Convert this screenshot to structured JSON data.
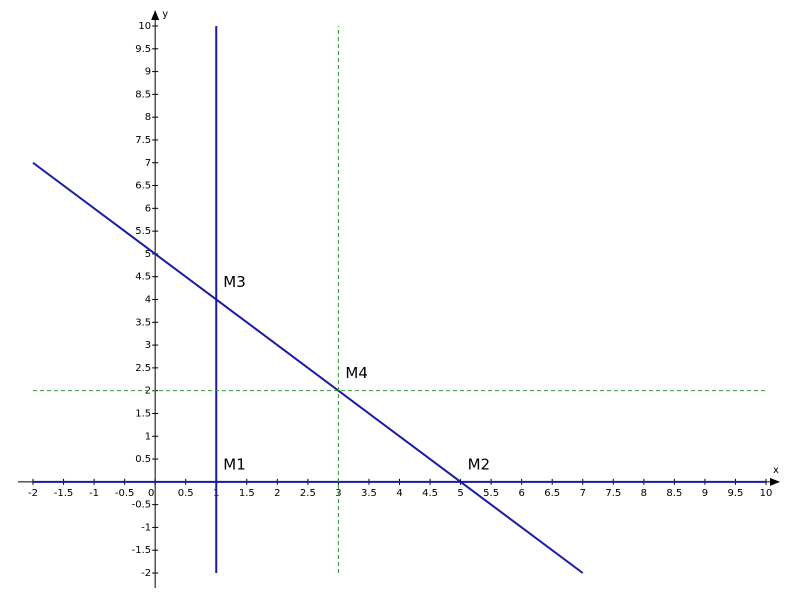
{
  "chart_data": {
    "type": "line",
    "x_label": "x",
    "y_label": "y",
    "xlim": [
      -2,
      10
    ],
    "ylim": [
      -2,
      10
    ],
    "xticks": [
      -2,
      -1.5,
      -1,
      -0.5,
      0,
      0.5,
      1,
      1.5,
      2,
      2.5,
      3,
      3.5,
      4,
      4.5,
      5,
      5.5,
      6,
      6.5,
      7,
      7.5,
      8,
      8.5,
      9,
      9.5,
      10
    ],
    "yticks": [
      -2,
      -1.5,
      -1,
      -0.5,
      0.5,
      1,
      1.5,
      2,
      2.5,
      3,
      3.5,
      4,
      4.5,
      5,
      5.5,
      6,
      6.5,
      7,
      7.5,
      8,
      8.5,
      9,
      9.5,
      10
    ],
    "series": [
      {
        "color": "#1a1aa6",
        "dashed": false,
        "x": [
          -2,
          7
        ],
        "values": [
          7,
          -2
        ]
      },
      {
        "color": "#1a1aa6",
        "dashed": false,
        "x": [
          1,
          1
        ],
        "values": [
          -2,
          10
        ]
      },
      {
        "color": "#1a1aa6",
        "dashed": false,
        "x": [
          -2,
          10
        ],
        "values": [
          0,
          0
        ]
      },
      {
        "color": "#339933",
        "dashed": true,
        "x": [
          3,
          3
        ],
        "values": [
          -2,
          10
        ]
      },
      {
        "color": "#339933",
        "dashed": true,
        "x": [
          -2,
          10
        ],
        "values": [
          2,
          2
        ]
      }
    ],
    "annotations": [
      {
        "text": "M1",
        "x": 1,
        "y": 0
      },
      {
        "text": "M2",
        "x": 5,
        "y": 0
      },
      {
        "text": "M3",
        "x": 1,
        "y": 4
      },
      {
        "text": "M4",
        "x": 3,
        "y": 2
      }
    ]
  }
}
